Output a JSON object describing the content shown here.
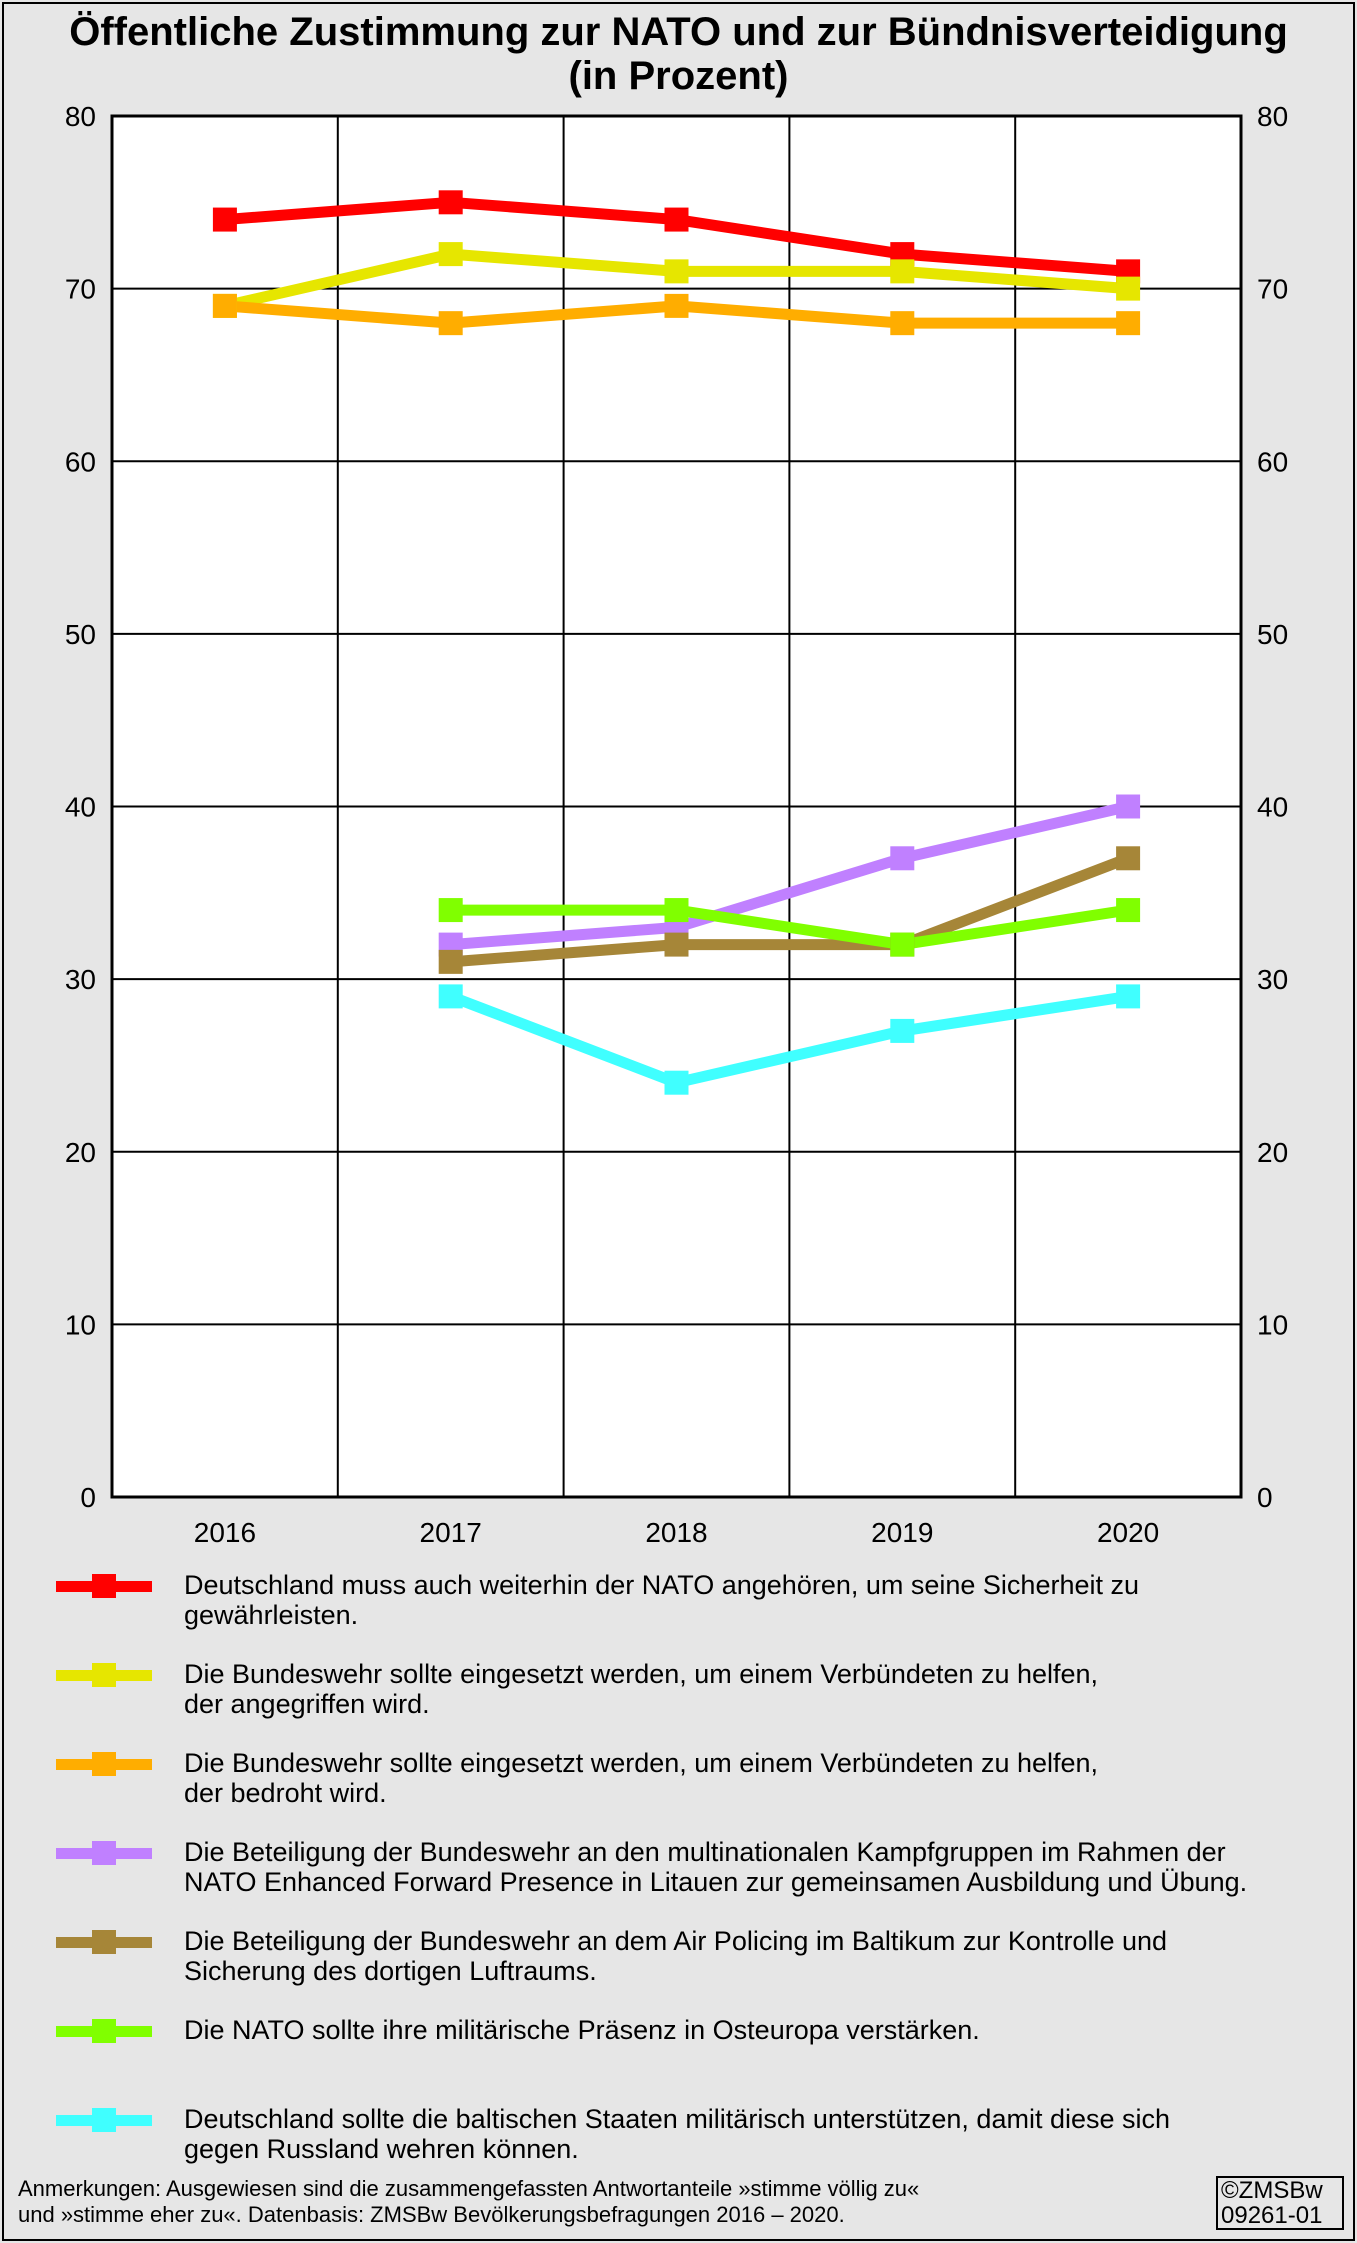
{
  "title": {
    "line1": "Öffentliche Zustimmung zur NATO und zur Bündnisverteidigung",
    "line2": "(in Prozent)"
  },
  "notes": {
    "line1": "Anmerkungen: Ausgewiesen sind die zusammengefassten Antwortanteile »stimme völlig zu«",
    "line2": "und »stimme eher zu«. Datenbasis: ZMSBw Bevölkerungsbefragungen 2016 – 2020."
  },
  "copyright": {
    "line1": "©ZMSBw",
    "line2": "09261-01"
  },
  "chart_data": {
    "type": "line",
    "title": "Öffentliche Zustimmung zur NATO und zur Bündnisverteidigung (in Prozent)",
    "x": [
      "2016",
      "2017",
      "2018",
      "2019",
      "2020"
    ],
    "ylim": [
      0,
      80
    ],
    "yticks": [
      0,
      10,
      20,
      30,
      40,
      50,
      60,
      70,
      80
    ],
    "y_axis_both_sides": true,
    "grid": true,
    "legend_position": "bottom",
    "series": [
      {
        "name_lines": [
          "Deutschland muss auch weiterhin der NATO angehören, um seine Sicherheit zu",
          "gewährleisten."
        ],
        "color": "#ff0000",
        "values": [
          74,
          75,
          74,
          72,
          71
        ]
      },
      {
        "name_lines": [
          "Die Bundeswehr sollte eingesetzt werden, um einem Verbündeten zu helfen,",
          "der angegriffen wird."
        ],
        "color": "#e6e600",
        "values": [
          69,
          72,
          71,
          71,
          70
        ]
      },
      {
        "name_lines": [
          "Die Bundeswehr sollte eingesetzt werden, um einem Verbündeten zu helfen,",
          "der bedroht wird."
        ],
        "color": "#ffad00",
        "values": [
          69,
          68,
          69,
          68,
          68
        ]
      },
      {
        "name_lines": [
          "Die Beteiligung der Bundeswehr an den multinationalen Kampfgruppen im Rahmen der",
          "NATO Enhanced Forward Presence in Litauen zur gemeinsamen Ausbildung und Übung."
        ],
        "color": "#c080ff",
        "values": [
          null,
          32,
          33,
          37,
          40
        ]
      },
      {
        "name_lines": [
          "Die Beteiligung der Bundeswehr an dem Air Policing im Baltikum zur Kontrolle und",
          "Sicherung des dortigen Luftraums."
        ],
        "color": "#a68638",
        "values": [
          null,
          31,
          32,
          32,
          37
        ]
      },
      {
        "name_lines": [
          "Die NATO sollte ihre militärische Präsenz in Osteuropa verstärken."
        ],
        "color": "#80ff00",
        "values": [
          null,
          34,
          34,
          32,
          34
        ]
      },
      {
        "name_lines": [
          "Deutschland sollte die baltischen Staaten militärisch unterstützen, damit diese sich",
          "gegen Russland wehren können."
        ],
        "color": "#40ffff",
        "values": [
          null,
          29,
          24,
          27,
          29
        ]
      }
    ]
  }
}
